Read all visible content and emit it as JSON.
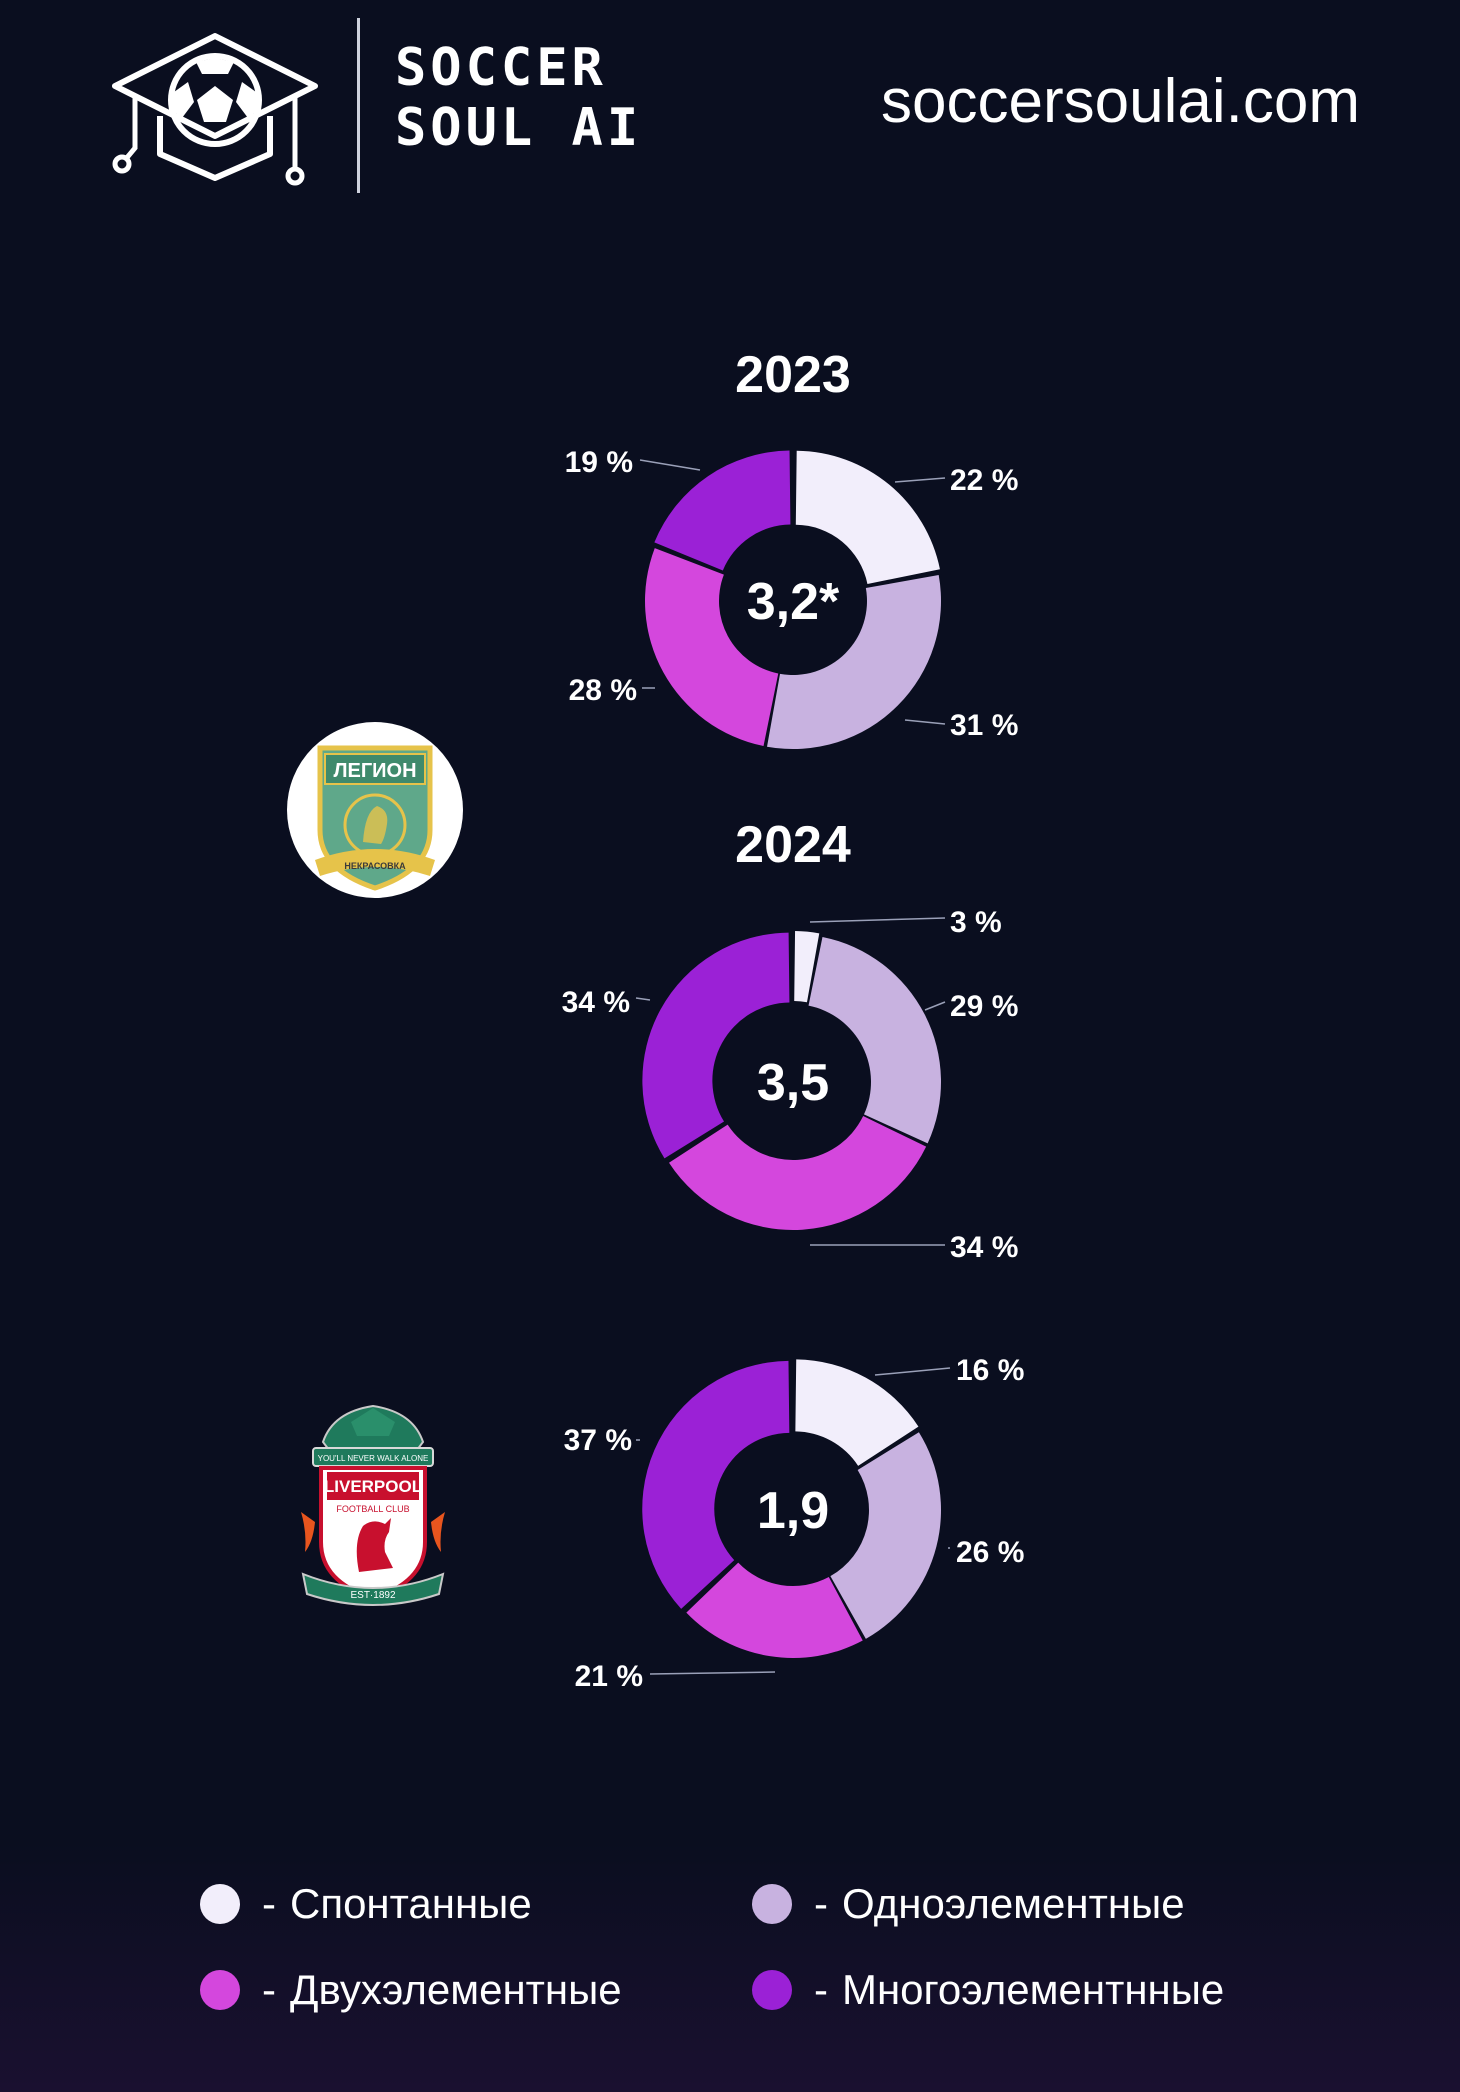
{
  "header": {
    "brand_line1": "SOCCER",
    "brand_line2": "SOUL AI",
    "site_url": "soccersoulai.com",
    "logo_icon": "soccer-ball-graduation-cap-icon"
  },
  "colors": {
    "background": "#0a0e1f",
    "spontaneous": "#f2eefb",
    "one_element": "#c8b2e0",
    "two_element": "#d447dd",
    "multi_element": "#9b21d6",
    "leader_line": "#9aa0b8"
  },
  "clubs": [
    {
      "name": "ЛЕГИОН",
      "sub": "НЕКРАСОВКА",
      "icon": "legion-club-badge-icon"
    },
    {
      "name": "LIVERPOOL",
      "sub": "FOOTBALL CLUB",
      "motto": "YOU'LL NEVER WALK ALONE",
      "est": "EST·1892",
      "icon": "liverpool-club-badge-icon"
    }
  ],
  "chart_data": [
    {
      "type": "pie",
      "title": "2023",
      "center_label": "3,2*",
      "categories": [
        "Спонтанные",
        "Одноэлементные",
        "Двухэлементные",
        "Многоэлементнные"
      ],
      "values": [
        22,
        31,
        28,
        19
      ],
      "labels": [
        "22 %",
        "31 %",
        "28 %",
        "19 %"
      ]
    },
    {
      "type": "pie",
      "title": "2024",
      "center_label": "3,5",
      "categories": [
        "Спонтанные",
        "Одноэлементные",
        "Двухэлементные",
        "Многоэлементнные"
      ],
      "values": [
        3,
        29,
        34,
        34
      ],
      "labels": [
        "3 %",
        "29 %",
        "34 %",
        "34 %"
      ]
    },
    {
      "type": "pie",
      "title": "",
      "center_label": "1,9",
      "categories": [
        "Спонтанные",
        "Одноэлементные",
        "Двухэлементные",
        "Многоэлементнные"
      ],
      "values": [
        16,
        26,
        21,
        37
      ],
      "labels": [
        "16 %",
        "26 %",
        "21 %",
        "37 %"
      ]
    }
  ],
  "legend": {
    "dash": "-",
    "items": [
      {
        "label": "Спонтанные",
        "color": "#f2eefb"
      },
      {
        "label": "Одноэлементные",
        "color": "#c8b2e0"
      },
      {
        "label": "Двухэлементные",
        "color": "#d447dd"
      },
      {
        "label": "Многоэлементнные",
        "color": "#9b21d6"
      }
    ]
  }
}
